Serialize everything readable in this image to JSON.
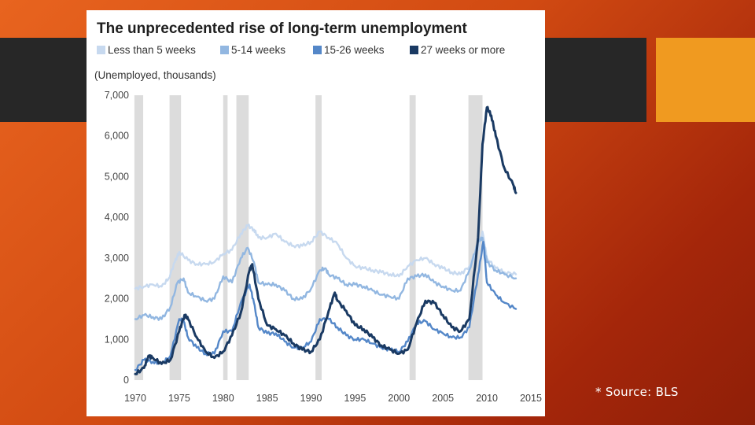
{
  "slide": {
    "source_note": "* Source: BLS"
  },
  "chart_data": {
    "type": "line",
    "title": "The unprecedented rise of long-term unemployment",
    "ylabel": "(Unemployed, thousands)",
    "xlabel": "",
    "xlim": [
      1970,
      2015
    ],
    "ylim": [
      0,
      7000
    ],
    "yticks": [
      0,
      1000,
      2000,
      3000,
      4000,
      5000,
      6000,
      7000
    ],
    "ytick_labels": [
      "0",
      "1,000",
      "2,000",
      "3,000",
      "4,000",
      "5,000",
      "6,000",
      "7,000"
    ],
    "xticks": [
      1970,
      1975,
      1980,
      1985,
      1990,
      1995,
      2000,
      2005,
      2010,
      2015
    ],
    "xtick_labels": [
      "1970",
      "1975",
      "1980",
      "1985",
      "1990",
      "1995",
      "2000",
      "2005",
      "2010",
      "2015"
    ],
    "legend_position": "top",
    "recessions": [
      [
        1969.9,
        1970.9
      ],
      [
        1973.9,
        1975.2
      ],
      [
        1980.0,
        1980.5
      ],
      [
        1981.5,
        1982.9
      ],
      [
        1990.5,
        1991.2
      ],
      [
        2001.2,
        2001.9
      ],
      [
        2007.9,
        2009.5
      ]
    ],
    "series": [
      {
        "name": "Less than 5 weeks",
        "color": "#c7d9ef",
        "x": [
          1970,
          1971,
          1972,
          1973,
          1973.8,
          1974.5,
          1975,
          1976,
          1977,
          1978,
          1979,
          1980,
          1981,
          1982,
          1982.8,
          1983.5,
          1984,
          1985,
          1986,
          1987,
          1988,
          1989,
          1990,
          1991,
          1992,
          1993,
          1994,
          1995,
          1996,
          1997,
          1998,
          1999,
          2000,
          2001,
          2002,
          2003,
          2004,
          2005,
          2006,
          2007,
          2008,
          2009,
          2009.5,
          2010,
          2011,
          2012,
          2013.3
        ],
        "values": [
          2250,
          2300,
          2350,
          2300,
          2500,
          2900,
          3150,
          2950,
          2850,
          2850,
          2900,
          3100,
          3200,
          3600,
          3800,
          3700,
          3500,
          3500,
          3600,
          3400,
          3300,
          3300,
          3400,
          3650,
          3500,
          3350,
          3000,
          2800,
          2750,
          2700,
          2650,
          2600,
          2550,
          2800,
          2950,
          3000,
          2850,
          2750,
          2650,
          2600,
          2800,
          3200,
          3650,
          3000,
          2750,
          2650,
          2600
        ]
      },
      {
        "name": "5-14 weeks",
        "color": "#92b7e1",
        "x": [
          1970,
          1971,
          1972,
          1973,
          1974,
          1974.8,
          1975.5,
          1976,
          1977,
          1978,
          1979,
          1980,
          1981,
          1982,
          1982.8,
          1983.5,
          1984,
          1985,
          1986,
          1987,
          1988,
          1989,
          1990,
          1991,
          1991.6,
          1992,
          1993,
          1994,
          1995,
          1996,
          1997,
          1998,
          1999,
          2000,
          2001,
          2002,
          2003,
          2004,
          2005,
          2006,
          2007,
          2008,
          2009,
          2009.5,
          2010,
          2011,
          2012,
          2013.3
        ],
        "values": [
          1500,
          1600,
          1550,
          1500,
          1800,
          2400,
          2500,
          2150,
          2050,
          1950,
          2000,
          2550,
          2400,
          3000,
          3250,
          2900,
          2400,
          2350,
          2350,
          2200,
          2000,
          2000,
          2250,
          2700,
          2750,
          2600,
          2500,
          2350,
          2350,
          2300,
          2200,
          2100,
          2050,
          2000,
          2500,
          2550,
          2600,
          2400,
          2300,
          2200,
          2200,
          2700,
          3400,
          3500,
          2900,
          2700,
          2600,
          2500
        ]
      },
      {
        "name": "15-26 weeks",
        "color": "#5487c8",
        "x": [
          1970,
          1971,
          1972,
          1973,
          1974,
          1975,
          1975.5,
          1976,
          1977,
          1978,
          1979,
          1980,
          1981,
          1982,
          1983,
          1983.5,
          1984,
          1985,
          1986,
          1987,
          1988,
          1989,
          1990,
          1991,
          1992,
          1993,
          1994,
          1995,
          1996,
          1997,
          1998,
          1999,
          2000,
          2001,
          2002,
          2003,
          2004,
          2005,
          2006,
          2007,
          2008,
          2009,
          2009.6,
          2010,
          2011,
          2012,
          2013.3
        ],
        "values": [
          250,
          500,
          450,
          400,
          600,
          1500,
          1450,
          1050,
          800,
          650,
          650,
          1200,
          1200,
          1900,
          2350,
          1900,
          1300,
          1150,
          1150,
          950,
          800,
          800,
          950,
          1500,
          1500,
          1300,
          1100,
          1000,
          1000,
          900,
          800,
          750,
          700,
          950,
          1400,
          1450,
          1250,
          1150,
          1050,
          1050,
          1300,
          2600,
          3400,
          2400,
          2100,
          1900,
          1750
        ]
      },
      {
        "name": "27 weeks or more",
        "color": "#1a3a63",
        "x": [
          1970,
          1971,
          1971.5,
          1972,
          1973,
          1974,
          1975,
          1975.6,
          1976,
          1977,
          1978,
          1979,
          1980,
          1981,
          1982,
          1983,
          1983.3,
          1984,
          1985,
          1986,
          1987,
          1988,
          1989,
          1990,
          1991,
          1992,
          1992.7,
          1993,
          1994,
          1995,
          1996,
          1997,
          1998,
          1999,
          2000,
          2001,
          2002,
          2003,
          2004,
          2005,
          2006,
          2007,
          2008,
          2009,
          2009.5,
          2010,
          2010.5,
          2011,
          2012,
          2013,
          2013.3
        ],
        "values": [
          150,
          300,
          600,
          550,
          400,
          500,
          1200,
          1600,
          1500,
          1050,
          700,
          550,
          700,
          1100,
          1650,
          2700,
          2850,
          2000,
          1350,
          1250,
          1100,
          900,
          750,
          700,
          1000,
          1700,
          2150,
          1950,
          1700,
          1350,
          1250,
          1050,
          850,
          750,
          650,
          750,
          1400,
          1950,
          1900,
          1600,
          1300,
          1200,
          1500,
          3500,
          5800,
          6700,
          6500,
          6000,
          5200,
          4800,
          4600
        ]
      }
    ]
  }
}
